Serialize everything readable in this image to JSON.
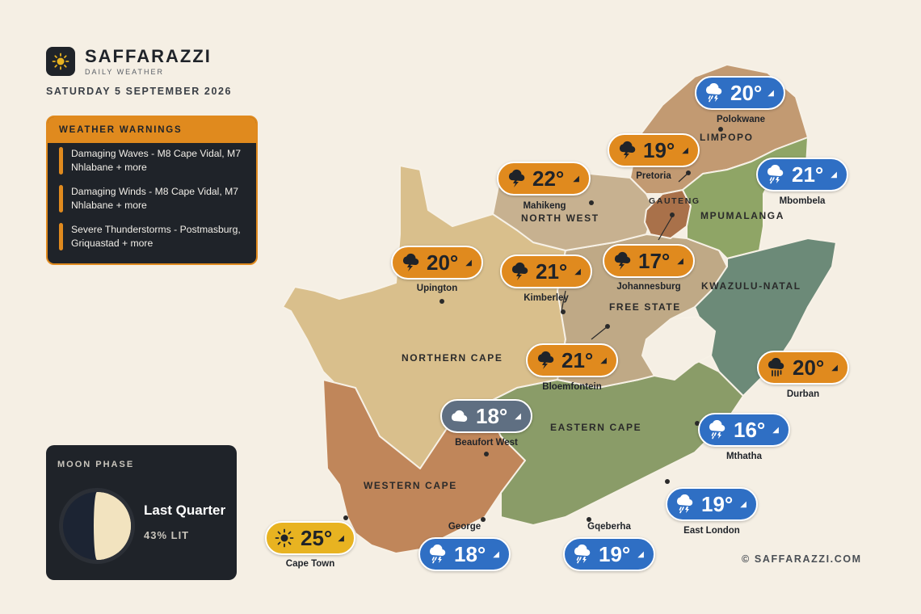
{
  "brand": {
    "name": "SAFFARAZZI",
    "subtitle": "DAILY WEATHER"
  },
  "date": "SATURDAY 5 SEPTEMBER 2026",
  "warnings": {
    "title": "WEATHER WARNINGS",
    "items": [
      {
        "text": "Damaging Waves - M8 Cape Vidal, M7 Nhlabane + more"
      },
      {
        "text": "Damaging Winds - M8 Cape Vidal, M7 Nhlabane + more"
      },
      {
        "text": "Severe Thunderstorms - Postmasburg, Griquastad + more"
      }
    ],
    "accent": "#e08a1e"
  },
  "moon": {
    "title": "MOON PHASE",
    "phase": "Last Quarter",
    "lit": "43% LIT"
  },
  "copyright": "© SAFFARAZZI.COM",
  "regions": {
    "limpopo": "LIMPOPO",
    "gauteng": "GAUTENG",
    "mpumalanga": "MPUMALANGA",
    "north_west": "NORTH WEST",
    "kwazulu_natal": "KWAZULU-NATAL",
    "free_state": "FREE STATE",
    "northern_cape": "NORTHERN CAPE",
    "eastern_cape": "EASTERN CAPE",
    "western_cape": "WESTERN CAPE"
  },
  "cities": [
    {
      "name": "Polokwane",
      "temp": "20°",
      "icon": "thunder-rain-icon",
      "style": "blue"
    },
    {
      "name": "Pretoria",
      "temp": "19°",
      "icon": "thunderstorm-icon",
      "style": "orange"
    },
    {
      "name": "Mbombela",
      "temp": "21°",
      "icon": "thunder-rain-icon",
      "style": "blue"
    },
    {
      "name": "Mahikeng",
      "temp": "22°",
      "icon": "thunderstorm-icon",
      "style": "orange"
    },
    {
      "name": "Upington",
      "temp": "20°",
      "icon": "thunderstorm-icon",
      "style": "orange"
    },
    {
      "name": "Kimberley",
      "temp": "21°",
      "icon": "thunderstorm-icon",
      "style": "orange"
    },
    {
      "name": "Johannesburg",
      "temp": "17°",
      "icon": "thunderstorm-icon",
      "style": "orange"
    },
    {
      "name": "Bloemfontein",
      "temp": "21°",
      "icon": "thunderstorm-icon",
      "style": "orange"
    },
    {
      "name": "Durban",
      "temp": "20°",
      "icon": "heavy-rain-icon",
      "style": "orange"
    },
    {
      "name": "Beaufort West",
      "temp": "18°",
      "icon": "cloud-icon",
      "style": "slate"
    },
    {
      "name": "Mthatha",
      "temp": "16°",
      "icon": "thunder-rain-icon",
      "style": "blue"
    },
    {
      "name": "East London",
      "temp": "19°",
      "icon": "thunder-rain-icon",
      "style": "blue"
    },
    {
      "name": "Cape Town",
      "temp": "25°",
      "icon": "sun-icon",
      "style": "yellow"
    },
    {
      "name": "George",
      "temp": "18°",
      "icon": "thunder-rain-icon",
      "style": "blue"
    },
    {
      "name": "Gqeberha",
      "temp": "19°",
      "icon": "thunder-rain-icon",
      "style": "blue"
    }
  ],
  "colors": {
    "background": "#f5efe4",
    "northern_cape": "#d9bf8c",
    "western_cape": "#c0865a",
    "eastern_cape": "#8a9c68",
    "free_state": "#bfa986",
    "north_west": "#c7b190",
    "gauteng": "#a9714a",
    "limpopo": "#c29a72",
    "mpumalanga": "#8fa566",
    "kwazulu_natal": "#6c8a78",
    "orange_pill": "#e08a1e",
    "blue_pill": "#2f6fc4",
    "slate_pill": "#5f6f82",
    "yellow_pill": "#e8b321"
  }
}
